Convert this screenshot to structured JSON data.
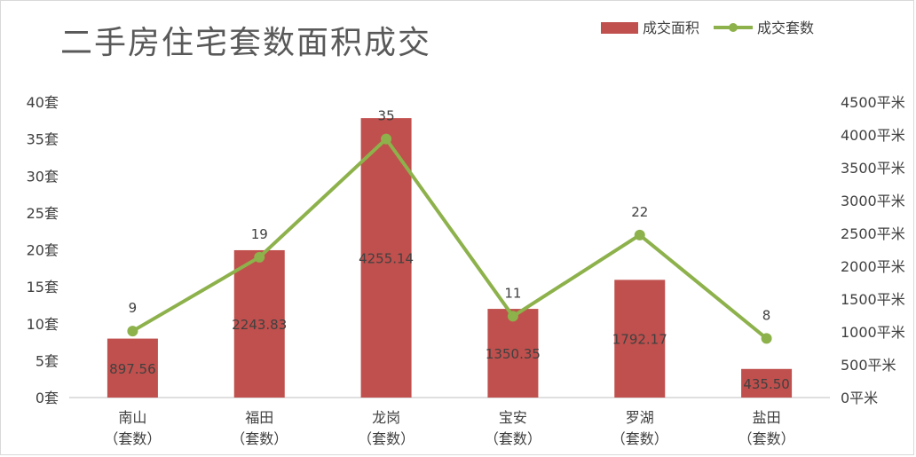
{
  "chart_data": {
    "type": "bar+line",
    "title": "二手房住宅套数面积成交",
    "categories": [
      "南山",
      "福田",
      "龙岗",
      "宝安",
      "罗湖",
      "盐田"
    ],
    "category_sublabel": "（套数）",
    "series": [
      {
        "name": "成交面积",
        "type": "bar",
        "axis": "right",
        "values": [
          897.56,
          2243.83,
          4255.14,
          1350.35,
          1792.17,
          435.5
        ],
        "labels": [
          "897.56",
          "2243.83",
          "4255.14",
          "1350.35",
          "1792.17",
          "435.50"
        ],
        "color": "#c0504d"
      },
      {
        "name": "成交套数",
        "type": "line",
        "axis": "left",
        "values": [
          9,
          19,
          35,
          11,
          22,
          8
        ],
        "labels": [
          "9",
          "19",
          "35",
          "11",
          "22",
          "8"
        ],
        "color": "#8db14b"
      }
    ],
    "y_left": {
      "ylim": [
        0,
        40
      ],
      "ticks": [
        0,
        5,
        10,
        15,
        20,
        25,
        30,
        35,
        40
      ],
      "unit": "套"
    },
    "y_right": {
      "ylim": [
        0,
        4500
      ],
      "ticks": [
        0,
        500,
        1000,
        1500,
        2000,
        2500,
        3000,
        3500,
        4000,
        4500
      ],
      "unit": "平米"
    },
    "grid": false,
    "legend": "top-right"
  }
}
